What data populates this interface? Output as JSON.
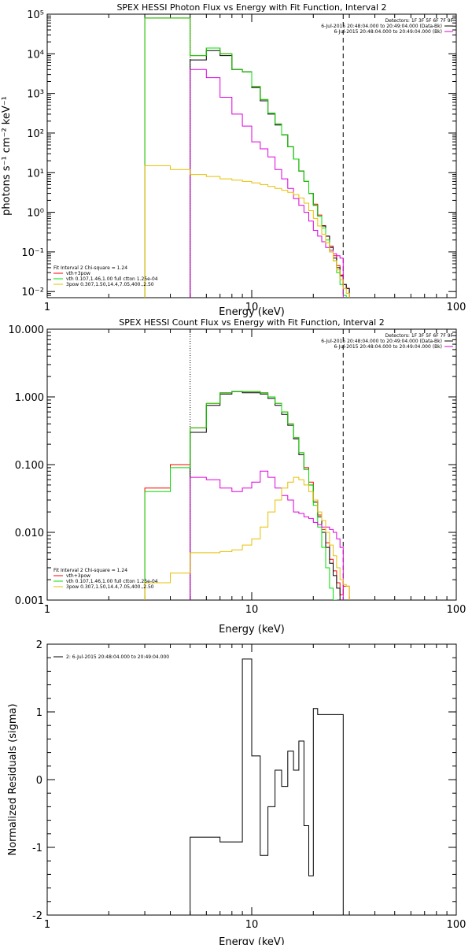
{
  "chart_data": [
    {
      "type": "line",
      "title": "SPEX HESSI Photon Flux vs Energy with Fit Function, Interval 2",
      "xlabel": "Energy (keV)",
      "ylabel": "photons s⁻¹ cm⁻² keV⁻¹",
      "xscale": "log",
      "yscale": "log",
      "xlim": [
        1,
        100
      ],
      "ylim": [
        0.007,
        100000
      ],
      "x_tick_labels": [
        "1",
        "10",
        "100"
      ],
      "y_tick_labels": [
        "10⁻²",
        "10⁻¹",
        "10⁰",
        "10¹",
        "10²",
        "10³",
        "10⁴",
        "10⁵"
      ],
      "bin_edges": [
        3,
        4,
        5,
        6,
        7,
        8,
        9,
        10,
        11,
        12,
        13,
        14,
        15,
        16,
        17,
        18,
        19,
        20,
        21,
        22,
        23,
        24,
        25,
        26,
        27,
        28,
        29,
        30
      ],
      "vlines": [
        {
          "x": 5,
          "style": "dotted"
        },
        {
          "x": 28,
          "style": "dashed"
        }
      ],
      "series": [
        {
          "color": "#ff0000",
          "values": [
            80000,
            80000,
            9000,
            14000,
            10000,
            4000,
            3500,
            1500,
            700,
            320,
            170,
            90,
            45,
            22,
            11,
            6,
            3,
            1.6,
            0.85,
            0.46,
            0.25,
            0.14,
            0.08,
            0.045,
            0.026,
            0.015,
            0.012
          ]
        },
        {
          "color": "#000000",
          "values": [
            null,
            null,
            7000,
            12000,
            9000,
            4000,
            3500,
            1400,
            650,
            300,
            160,
            90,
            45,
            22,
            11,
            6,
            3,
            1.5,
            0.8,
            0.45,
            0.25,
            0.13,
            0.07,
            0.04,
            0.025,
            0.015,
            0.012
          ]
        },
        {
          "color": "#00e000",
          "values": [
            80000,
            80000,
            9000,
            14000,
            10000,
            4000,
            3500,
            1500,
            700,
            320,
            170,
            90,
            45,
            22,
            11,
            6,
            3,
            1.5,
            0.8,
            0.4,
            0.2,
            0.1,
            0.06,
            0.03,
            0.015,
            0.008,
            0.005
          ]
        },
        {
          "color": "#dd00dd",
          "values": [
            null,
            null,
            4000,
            2500,
            800,
            300,
            150,
            60,
            40,
            25,
            12,
            7,
            4,
            2.2,
            1.5,
            1.0,
            0.6,
            0.35,
            0.25,
            0.18,
            0.13,
            0.11,
            0.09,
            0.08,
            0.07,
            null,
            null
          ]
        },
        {
          "color": "#e6c000",
          "values": [
            15,
            12,
            9,
            8,
            7,
            6.5,
            6,
            5.5,
            5,
            4.5,
            4,
            3.6,
            3.2,
            2.8,
            2.3,
            1.7,
            1.1,
            0.7,
            0.45,
            0.28,
            0.17,
            0.1,
            0.06,
            0.035,
            0.02,
            0.012,
            0.009
          ]
        }
      ],
      "detectors_label": "Detectors: 1F 3F 5F 6F 7F 9F",
      "legend_top": [
        {
          "text": "6-Jul-2015 20:48:04.000 to 20:49:04.000 (Data-Bk)",
          "color": "#000000"
        },
        {
          "text": "6-Jul-2015 20:48:04.000 to 20:49:04.000 (Bk)",
          "color": "#dd00dd"
        }
      ],
      "legend_bottom": [
        {
          "text": "Fit Interval 2   Chi-square = 1.24",
          "color": null
        },
        {
          "text": "vth+3pow",
          "color": "#ff0000"
        },
        {
          "text": "vth 0.107,1.46,1.00  full ctton 1.25e-04",
          "color": "#00e000"
        },
        {
          "text": "3pow 0.307,1.50,14.4,7.05,400.,2.50",
          "color": "#e6c000"
        }
      ]
    },
    {
      "type": "line",
      "title": "SPEX HESSI Count Flux vs Energy with Fit Function, Interval 2",
      "xlabel": "Energy (keV)",
      "ylabel": "",
      "xscale": "log",
      "yscale": "log",
      "xlim": [
        1,
        100
      ],
      "ylim": [
        0.001,
        10
      ],
      "x_tick_labels": [
        "1",
        "10",
        "100"
      ],
      "y_tick_labels": [
        "0.001",
        "0.010",
        "0.100",
        "1.000",
        "10.000"
      ],
      "bin_edges": [
        3,
        4,
        5,
        6,
        7,
        8,
        9,
        10,
        11,
        12,
        13,
        14,
        15,
        16,
        17,
        18,
        19,
        20,
        21,
        22,
        23,
        24,
        25,
        26,
        27,
        28,
        29,
        30
      ],
      "vlines": [
        {
          "x": 5,
          "style": "dotted"
        },
        {
          "x": 28,
          "style": "dashed"
        }
      ],
      "series": [
        {
          "color": "#ff0000",
          "values": [
            0.045,
            0.1,
            0.35,
            0.8,
            1.15,
            1.2,
            1.2,
            1.2,
            1.15,
            1.0,
            0.8,
            0.6,
            0.4,
            0.25,
            0.15,
            0.09,
            0.055,
            0.03,
            0.018,
            0.011,
            0.007,
            0.004,
            0.0027,
            0.0018,
            0.0012,
            0.0016,
            0.0016
          ]
        },
        {
          "color": "#000000",
          "values": [
            null,
            null,
            0.3,
            0.75,
            1.1,
            1.2,
            1.15,
            1.15,
            1.1,
            0.95,
            0.75,
            0.55,
            0.38,
            0.24,
            0.14,
            0.085,
            0.05,
            0.028,
            0.017,
            0.01,
            0.006,
            0.0035,
            0.0023,
            0.0015,
            0.001,
            0.001,
            0.001
          ]
        },
        {
          "color": "#00e000",
          "values": [
            0.04,
            0.09,
            0.35,
            0.8,
            1.15,
            1.2,
            1.2,
            1.2,
            1.15,
            1.0,
            0.8,
            0.6,
            0.4,
            0.25,
            0.15,
            0.085,
            0.05,
            0.025,
            0.012,
            0.006,
            0.003,
            0.0015,
            0.001,
            null,
            null,
            null,
            null
          ]
        },
        {
          "color": "#dd00dd",
          "values": [
            null,
            null,
            0.065,
            0.06,
            0.045,
            0.04,
            0.045,
            0.055,
            0.08,
            0.065,
            0.045,
            0.035,
            0.03,
            0.02,
            0.019,
            0.017,
            0.016,
            0.014,
            0.013,
            0.012,
            0.012,
            0.011,
            0.01,
            0.008,
            0.006,
            null,
            null
          ]
        },
        {
          "color": "#e6c000",
          "values": [
            0.0018,
            0.0025,
            0.005,
            0.005,
            0.0052,
            0.0055,
            0.0065,
            0.008,
            0.012,
            0.02,
            0.03,
            0.045,
            0.055,
            0.065,
            0.06,
            0.05,
            0.04,
            0.03,
            0.02,
            0.015,
            0.01,
            0.0065,
            0.0045,
            0.003,
            0.002,
            0.0017,
            0.0016
          ]
        }
      ],
      "detectors_label": "Detectors: 1F 3F 5F 6F 7F 9F",
      "legend_top": [
        {
          "text": "6-Jul-2015 20:48:04.000 to 20:49:04.000 (Data-Bk)",
          "color": "#000000"
        },
        {
          "text": "6-Jul-2015 20:48:04.000 to 20:49:04.000 (Bk)",
          "color": "#dd00dd"
        }
      ],
      "legend_bottom": [
        {
          "text": "Fit Interval 2   Chi-square = 1.24",
          "color": null
        },
        {
          "text": "vth+3pow",
          "color": "#ff0000"
        },
        {
          "text": "vth 0.107,1.46,1.00  full ctton 1.25e-04",
          "color": "#00e000"
        },
        {
          "text": "3pow 0.307,1.50,14.4,7.05,400.,2.50",
          "color": "#e6c000"
        }
      ]
    },
    {
      "type": "line",
      "title": "",
      "xlabel": "Energy (keV)",
      "ylabel": "Normalized Residuals (sigma)",
      "xscale": "log",
      "yscale": "linear",
      "xlim": [
        1,
        100
      ],
      "ylim": [
        -2,
        2
      ],
      "x_tick_labels": [
        "1",
        "10",
        "100"
      ],
      "y_tick_labels": [
        "-2",
        "-1",
        "0",
        "1",
        "2"
      ],
      "bin_edges": [
        5,
        6,
        7,
        8,
        9,
        10,
        11,
        12,
        13,
        14,
        15,
        16,
        17,
        18,
        19,
        20,
        21,
        22,
        23,
        24,
        25,
        26,
        27,
        28
      ],
      "series": [
        {
          "color": "#000000",
          "values": [
            -0.85,
            -0.85,
            -0.92,
            -0.92,
            1.78,
            0.35,
            -1.12,
            -0.4,
            0.14,
            -0.1,
            0.42,
            0.14,
            0.57,
            -0.68,
            -1.42,
            1.05,
            0.96,
            0.96,
            0.96,
            0.96,
            0.96,
            0.96,
            0.96
          ]
        }
      ],
      "legend_top": [
        {
          "text": "2: 6-Jul-2015 20:48:04.000 to 20:49:04.000",
          "color": "#000000"
        }
      ]
    }
  ]
}
